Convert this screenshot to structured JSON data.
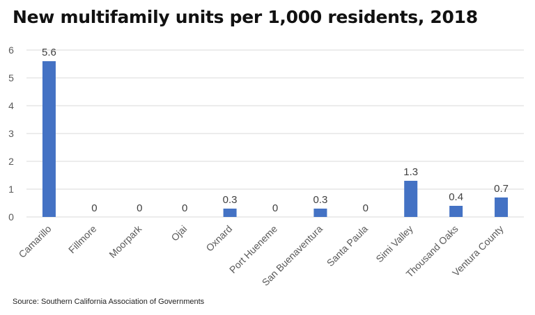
{
  "title": "New multifamily units per 1,000 residents, 2018",
  "source": {
    "label": "Source:",
    "text": "Southern California Association of Governments"
  },
  "colors": {
    "bar": "#4472c4",
    "grid": "#d9d9d9",
    "tick": "#595959",
    "label": "#404040"
  },
  "chart_data": {
    "type": "bar",
    "title": "New multifamily units per 1,000 residents, 2018",
    "categories": [
      "Camarillo",
      "Fillmore",
      "Moorpark",
      "Ojai",
      "Oxnard",
      "Port Hueneme",
      "San Buenaventura",
      "Santa Paula",
      "Simi Valley",
      "Thousand Oaks",
      "Ventura County"
    ],
    "values": [
      5.6,
      0,
      0,
      0,
      0.3,
      0,
      0.3,
      0,
      1.3,
      0.4,
      0.7
    ],
    "data_labels": [
      "5.6",
      "0",
      "0",
      "0",
      "0.3",
      "0",
      "0.3",
      "0",
      "1.3",
      "0.4",
      "0.7"
    ],
    "yticks": [
      0,
      1,
      2,
      3,
      4,
      5,
      6
    ],
    "ylim": [
      0,
      6
    ],
    "xlabel": "",
    "ylabel": "",
    "grid": true,
    "legend": "none"
  }
}
